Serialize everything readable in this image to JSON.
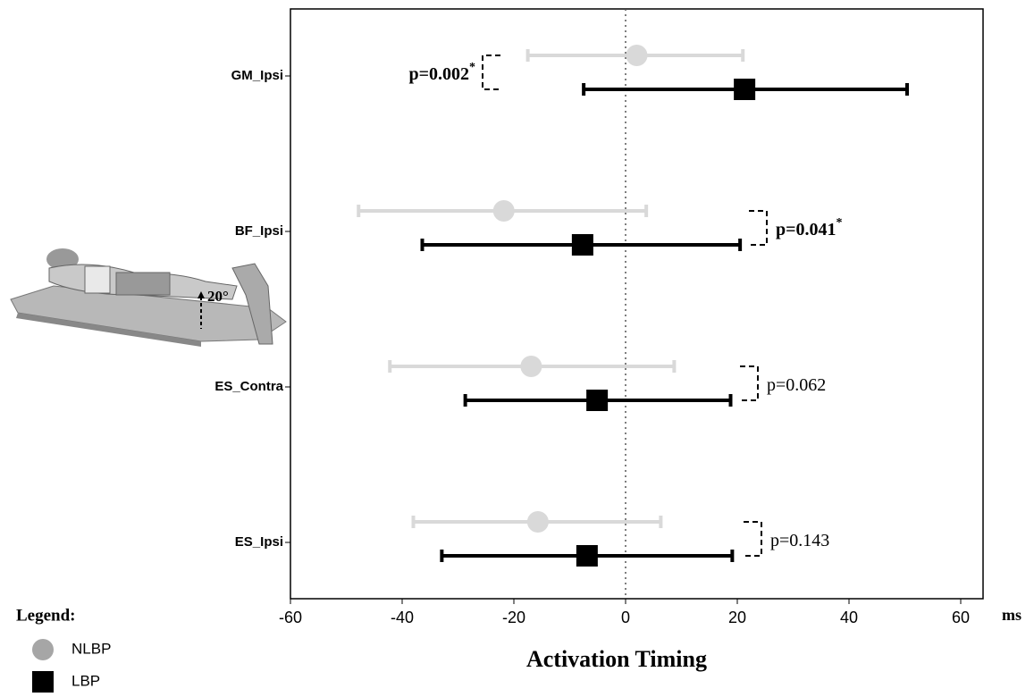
{
  "chart_data": {
    "type": "forest",
    "xlabel": "Activation Timing",
    "x_unit": "ms",
    "categories": [
      "GM_Ipsi",
      "BF_Ipsi",
      "ES_Contra",
      "ES_Ipsi"
    ],
    "series": [
      {
        "name": "NLBP",
        "color": "#d9d9d9",
        "marker": "circle",
        "values": [
          2,
          -21.8,
          -16.9,
          -15.7
        ],
        "low": [
          -17.5,
          -47.8,
          -42.2,
          -38
        ],
        "high": [
          21,
          3.7,
          8.7,
          6.3
        ]
      },
      {
        "name": "LBP",
        "color": "#000000",
        "marker": "square",
        "values": [
          21.3,
          -7.7,
          -5.1,
          -6.9
        ],
        "low": [
          -7.5,
          -36.4,
          -28.7,
          -32.9
        ],
        "high": [
          50.4,
          20.5,
          18.8,
          19.1
        ]
      }
    ],
    "p_values": [
      {
        "label": "p=0.002",
        "sig": "*"
      },
      {
        "label": "p=0.041",
        "sig": "*"
      },
      {
        "label": "p=0.062"
      },
      {
        "label": "p=0.143"
      }
    ],
    "reference_line": 0,
    "xlim": [
      -60,
      64
    ],
    "xticks": [
      -60,
      -40,
      -20,
      0,
      20,
      40,
      60
    ],
    "legend_title": "Legend:",
    "figure_label": "20°"
  }
}
